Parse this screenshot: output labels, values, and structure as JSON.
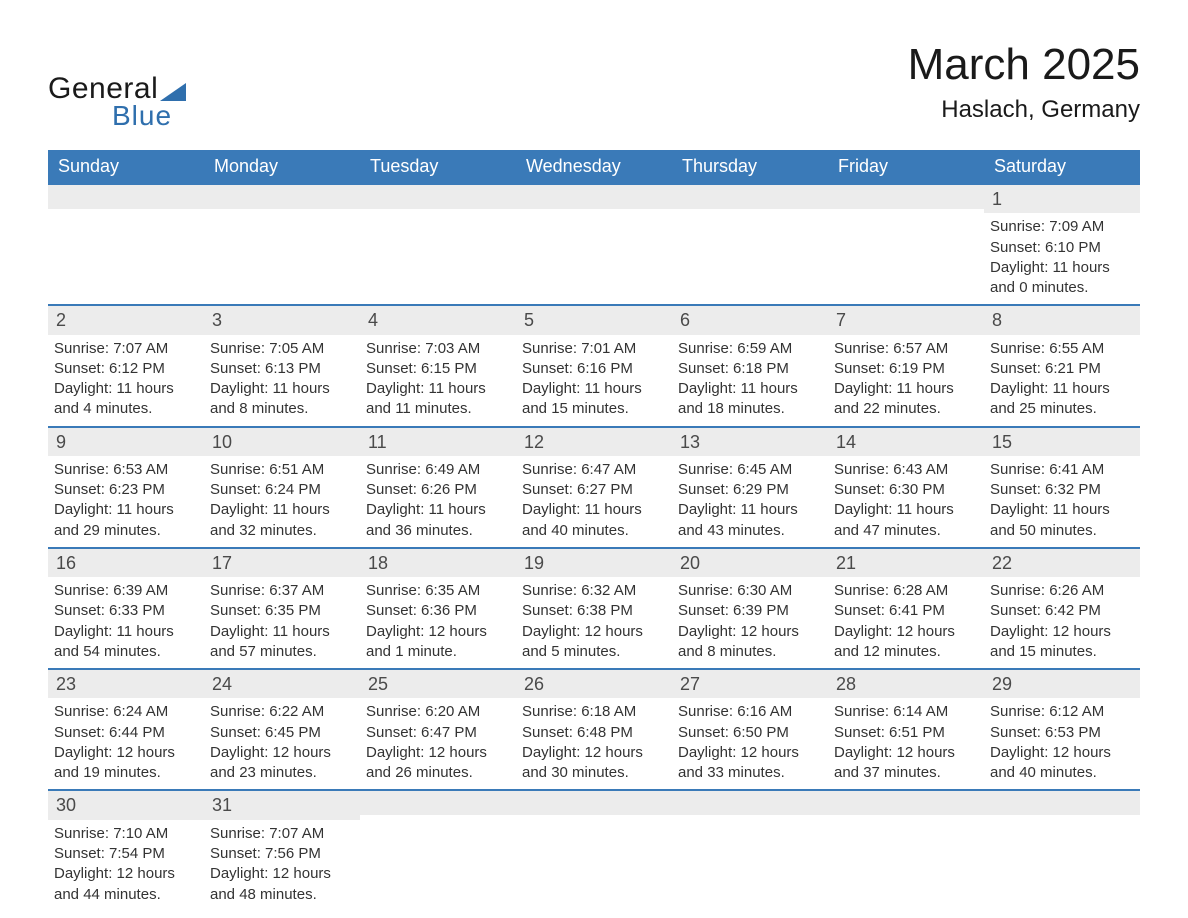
{
  "brand": {
    "line1": "General",
    "line2": "Blue",
    "accent_color": "#2f6fad"
  },
  "title": "March 2025",
  "location": "Haslach, Germany",
  "colors": {
    "header_bg": "#3a7ab8",
    "header_fg": "#ffffff",
    "row_divider": "#3a7ab8",
    "daynum_bg": "#ececec",
    "text": "#333333"
  },
  "day_headers": [
    "Sunday",
    "Monday",
    "Tuesday",
    "Wednesday",
    "Thursday",
    "Friday",
    "Saturday"
  ],
  "weeks": [
    [
      {
        "day": "",
        "sunrise": "",
        "sunset": "",
        "daylight": ""
      },
      {
        "day": "",
        "sunrise": "",
        "sunset": "",
        "daylight": ""
      },
      {
        "day": "",
        "sunrise": "",
        "sunset": "",
        "daylight": ""
      },
      {
        "day": "",
        "sunrise": "",
        "sunset": "",
        "daylight": ""
      },
      {
        "day": "",
        "sunrise": "",
        "sunset": "",
        "daylight": ""
      },
      {
        "day": "",
        "sunrise": "",
        "sunset": "",
        "daylight": ""
      },
      {
        "day": "1",
        "sunrise": "Sunrise: 7:09 AM",
        "sunset": "Sunset: 6:10 PM",
        "daylight": "Daylight: 11 hours and 0 minutes."
      }
    ],
    [
      {
        "day": "2",
        "sunrise": "Sunrise: 7:07 AM",
        "sunset": "Sunset: 6:12 PM",
        "daylight": "Daylight: 11 hours and 4 minutes."
      },
      {
        "day": "3",
        "sunrise": "Sunrise: 7:05 AM",
        "sunset": "Sunset: 6:13 PM",
        "daylight": "Daylight: 11 hours and 8 minutes."
      },
      {
        "day": "4",
        "sunrise": "Sunrise: 7:03 AM",
        "sunset": "Sunset: 6:15 PM",
        "daylight": "Daylight: 11 hours and 11 minutes."
      },
      {
        "day": "5",
        "sunrise": "Sunrise: 7:01 AM",
        "sunset": "Sunset: 6:16 PM",
        "daylight": "Daylight: 11 hours and 15 minutes."
      },
      {
        "day": "6",
        "sunrise": "Sunrise: 6:59 AM",
        "sunset": "Sunset: 6:18 PM",
        "daylight": "Daylight: 11 hours and 18 minutes."
      },
      {
        "day": "7",
        "sunrise": "Sunrise: 6:57 AM",
        "sunset": "Sunset: 6:19 PM",
        "daylight": "Daylight: 11 hours and 22 minutes."
      },
      {
        "day": "8",
        "sunrise": "Sunrise: 6:55 AM",
        "sunset": "Sunset: 6:21 PM",
        "daylight": "Daylight: 11 hours and 25 minutes."
      }
    ],
    [
      {
        "day": "9",
        "sunrise": "Sunrise: 6:53 AM",
        "sunset": "Sunset: 6:23 PM",
        "daylight": "Daylight: 11 hours and 29 minutes."
      },
      {
        "day": "10",
        "sunrise": "Sunrise: 6:51 AM",
        "sunset": "Sunset: 6:24 PM",
        "daylight": "Daylight: 11 hours and 32 minutes."
      },
      {
        "day": "11",
        "sunrise": "Sunrise: 6:49 AM",
        "sunset": "Sunset: 6:26 PM",
        "daylight": "Daylight: 11 hours and 36 minutes."
      },
      {
        "day": "12",
        "sunrise": "Sunrise: 6:47 AM",
        "sunset": "Sunset: 6:27 PM",
        "daylight": "Daylight: 11 hours and 40 minutes."
      },
      {
        "day": "13",
        "sunrise": "Sunrise: 6:45 AM",
        "sunset": "Sunset: 6:29 PM",
        "daylight": "Daylight: 11 hours and 43 minutes."
      },
      {
        "day": "14",
        "sunrise": "Sunrise: 6:43 AM",
        "sunset": "Sunset: 6:30 PM",
        "daylight": "Daylight: 11 hours and 47 minutes."
      },
      {
        "day": "15",
        "sunrise": "Sunrise: 6:41 AM",
        "sunset": "Sunset: 6:32 PM",
        "daylight": "Daylight: 11 hours and 50 minutes."
      }
    ],
    [
      {
        "day": "16",
        "sunrise": "Sunrise: 6:39 AM",
        "sunset": "Sunset: 6:33 PM",
        "daylight": "Daylight: 11 hours and 54 minutes."
      },
      {
        "day": "17",
        "sunrise": "Sunrise: 6:37 AM",
        "sunset": "Sunset: 6:35 PM",
        "daylight": "Daylight: 11 hours and 57 minutes."
      },
      {
        "day": "18",
        "sunrise": "Sunrise: 6:35 AM",
        "sunset": "Sunset: 6:36 PM",
        "daylight": "Daylight: 12 hours and 1 minute."
      },
      {
        "day": "19",
        "sunrise": "Sunrise: 6:32 AM",
        "sunset": "Sunset: 6:38 PM",
        "daylight": "Daylight: 12 hours and 5 minutes."
      },
      {
        "day": "20",
        "sunrise": "Sunrise: 6:30 AM",
        "sunset": "Sunset: 6:39 PM",
        "daylight": "Daylight: 12 hours and 8 minutes."
      },
      {
        "day": "21",
        "sunrise": "Sunrise: 6:28 AM",
        "sunset": "Sunset: 6:41 PM",
        "daylight": "Daylight: 12 hours and 12 minutes."
      },
      {
        "day": "22",
        "sunrise": "Sunrise: 6:26 AM",
        "sunset": "Sunset: 6:42 PM",
        "daylight": "Daylight: 12 hours and 15 minutes."
      }
    ],
    [
      {
        "day": "23",
        "sunrise": "Sunrise: 6:24 AM",
        "sunset": "Sunset: 6:44 PM",
        "daylight": "Daylight: 12 hours and 19 minutes."
      },
      {
        "day": "24",
        "sunrise": "Sunrise: 6:22 AM",
        "sunset": "Sunset: 6:45 PM",
        "daylight": "Daylight: 12 hours and 23 minutes."
      },
      {
        "day": "25",
        "sunrise": "Sunrise: 6:20 AM",
        "sunset": "Sunset: 6:47 PM",
        "daylight": "Daylight: 12 hours and 26 minutes."
      },
      {
        "day": "26",
        "sunrise": "Sunrise: 6:18 AM",
        "sunset": "Sunset: 6:48 PM",
        "daylight": "Daylight: 12 hours and 30 minutes."
      },
      {
        "day": "27",
        "sunrise": "Sunrise: 6:16 AM",
        "sunset": "Sunset: 6:50 PM",
        "daylight": "Daylight: 12 hours and 33 minutes."
      },
      {
        "day": "28",
        "sunrise": "Sunrise: 6:14 AM",
        "sunset": "Sunset: 6:51 PM",
        "daylight": "Daylight: 12 hours and 37 minutes."
      },
      {
        "day": "29",
        "sunrise": "Sunrise: 6:12 AM",
        "sunset": "Sunset: 6:53 PM",
        "daylight": "Daylight: 12 hours and 40 minutes."
      }
    ],
    [
      {
        "day": "30",
        "sunrise": "Sunrise: 7:10 AM",
        "sunset": "Sunset: 7:54 PM",
        "daylight": "Daylight: 12 hours and 44 minutes."
      },
      {
        "day": "31",
        "sunrise": "Sunrise: 7:07 AM",
        "sunset": "Sunset: 7:56 PM",
        "daylight": "Daylight: 12 hours and 48 minutes."
      },
      {
        "day": "",
        "sunrise": "",
        "sunset": "",
        "daylight": ""
      },
      {
        "day": "",
        "sunrise": "",
        "sunset": "",
        "daylight": ""
      },
      {
        "day": "",
        "sunrise": "",
        "sunset": "",
        "daylight": ""
      },
      {
        "day": "",
        "sunrise": "",
        "sunset": "",
        "daylight": ""
      },
      {
        "day": "",
        "sunrise": "",
        "sunset": "",
        "daylight": ""
      }
    ]
  ]
}
